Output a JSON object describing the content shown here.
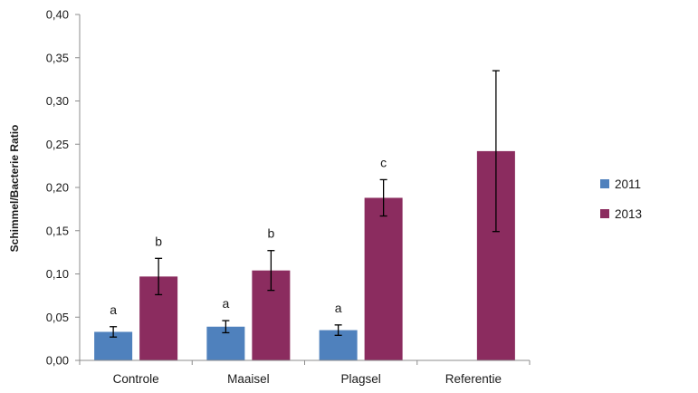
{
  "chart_data": {
    "type": "bar",
    "title": "",
    "xlabel": "",
    "ylabel": "Schimmel/Bacterie Ratio",
    "ylim": [
      0,
      0.4
    ],
    "yticks": [
      0,
      0.05,
      0.1,
      0.15,
      0.2,
      0.25,
      0.3,
      0.35,
      0.4
    ],
    "ytick_labels": [
      "0,00",
      "0,05",
      "0,10",
      "0,15",
      "0,20",
      "0,25",
      "0,30",
      "0,35",
      "0,40"
    ],
    "categories": [
      "Controle",
      "Maaisel",
      "Plagsel",
      "Referentie"
    ],
    "series": [
      {
        "name": "2011",
        "color": "#4f81bd",
        "values": [
          0.033,
          0.039,
          0.035,
          null
        ],
        "errors": [
          0.006,
          0.007,
          0.006,
          null
        ],
        "significance": [
          "a",
          "a",
          "a",
          null
        ]
      },
      {
        "name": "2013",
        "color": "#8b2c5f",
        "values": [
          0.097,
          0.104,
          0.188,
          0.242
        ],
        "errors": [
          0.021,
          0.023,
          0.021,
          0.093
        ],
        "significance": [
          "b",
          "b",
          "c",
          null
        ]
      }
    ],
    "legend_position": "right",
    "grid": false
  }
}
